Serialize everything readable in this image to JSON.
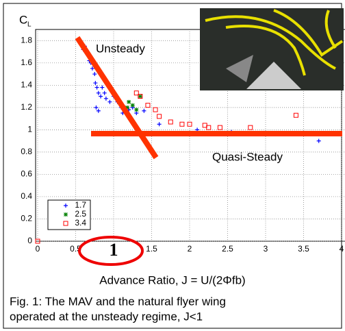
{
  "chart_data": {
    "type": "scatter",
    "ylabel": {
      "main": "C",
      "sub": "L"
    },
    "xlabel": "Advance Ratio, J = U/(2Φfb)",
    "annotations": [
      "Unsteady",
      "Quasi-Steady"
    ],
    "xlim": [
      0,
      4
    ],
    "ylim": [
      0,
      1.9
    ],
    "xticks": [
      0,
      0.5,
      1,
      1.5,
      2,
      2.5,
      3,
      3.5,
      4
    ],
    "yticks": [
      0,
      0.2,
      0.4,
      0.6,
      0.8,
      1,
      1.2,
      1.4,
      1.6,
      1.8
    ],
    "highlight_xtick": 1,
    "grid": true,
    "legend": "lower left",
    "series": [
      {
        "name": "1.7",
        "color": "#0000ff",
        "marker": "plus",
        "x": [
          0.57,
          0.6,
          0.62,
          0.65,
          0.68,
          0.7,
          0.72,
          0.75,
          0.76,
          0.78,
          0.8,
          0.83,
          0.77,
          0.8,
          0.85,
          0.88,
          0.9,
          0.95,
          1.0,
          1.05,
          1.1,
          1.12,
          1.2,
          1.25,
          1.3,
          1.4,
          1.6,
          2.1,
          2.55,
          3.2,
          3.7
        ],
        "values": [
          1.78,
          1.72,
          1.75,
          1.68,
          1.62,
          1.6,
          1.55,
          1.5,
          1.42,
          1.38,
          1.33,
          1.3,
          1.2,
          1.17,
          1.38,
          1.33,
          1.28,
          1.25,
          1.3,
          1.25,
          1.2,
          1.15,
          1.18,
          1.2,
          1.15,
          1.17,
          1.05,
          1.0,
          0.98,
          0.97,
          0.9
        ]
      },
      {
        "name": "2.5",
        "color": "#008000",
        "marker": "star",
        "x": [
          1.18,
          1.2,
          1.25,
          1.3,
          1.35
        ],
        "values": [
          1.2,
          1.25,
          1.22,
          1.18,
          1.3
        ]
      },
      {
        "name": "3.4",
        "color": "#ff0000",
        "marker": "square",
        "x": [
          0,
          1.3,
          1.35,
          1.45,
          1.55,
          1.6,
          1.75,
          1.9,
          2.0,
          2.2,
          2.25,
          2.4,
          2.8,
          3.4
        ],
        "values": [
          0,
          1.33,
          1.3,
          1.22,
          1.18,
          1.12,
          1.07,
          1.05,
          1.05,
          1.04,
          1.02,
          1.02,
          1.02,
          1.13
        ]
      }
    ]
  },
  "caption": [
    "Fig. 1:  The MAV and the natural flyer wing",
    "operated at the unsteady regime, J<1"
  ]
}
